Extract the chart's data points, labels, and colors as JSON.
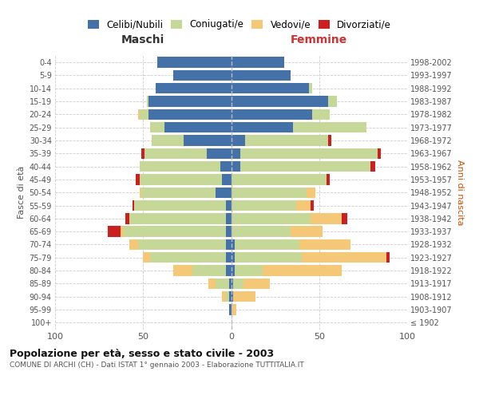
{
  "age_groups": [
    "100+",
    "95-99",
    "90-94",
    "85-89",
    "80-84",
    "75-79",
    "70-74",
    "65-69",
    "60-64",
    "55-59",
    "50-54",
    "45-49",
    "40-44",
    "35-39",
    "30-34",
    "25-29",
    "20-24",
    "15-19",
    "10-14",
    "5-9",
    "0-4"
  ],
  "birth_years": [
    "≤ 1902",
    "1903-1907",
    "1908-1912",
    "1913-1917",
    "1918-1922",
    "1923-1927",
    "1928-1932",
    "1933-1937",
    "1938-1942",
    "1943-1947",
    "1948-1952",
    "1953-1957",
    "1958-1962",
    "1963-1967",
    "1968-1972",
    "1973-1977",
    "1978-1982",
    "1983-1987",
    "1988-1992",
    "1993-1997",
    "1998-2002"
  ],
  "male_celibi": [
    0,
    1,
    1,
    1,
    3,
    3,
    3,
    3,
    3,
    3,
    9,
    5,
    6,
    14,
    27,
    38,
    47,
    47,
    43,
    33,
    42
  ],
  "male_coniugati": [
    0,
    0,
    2,
    8,
    19,
    43,
    50,
    58,
    55,
    52,
    42,
    47,
    46,
    35,
    18,
    8,
    5,
    1,
    0,
    0,
    0
  ],
  "male_vedovi": [
    0,
    0,
    2,
    4,
    11,
    4,
    5,
    2,
    0,
    0,
    1,
    0,
    0,
    0,
    0,
    0,
    1,
    0,
    0,
    0,
    0
  ],
  "male_divorziati": [
    0,
    0,
    0,
    0,
    0,
    0,
    0,
    7,
    2,
    1,
    0,
    2,
    0,
    2,
    0,
    0,
    0,
    0,
    0,
    0,
    0
  ],
  "female_nubili": [
    0,
    0,
    1,
    1,
    2,
    2,
    2,
    0,
    0,
    0,
    0,
    0,
    5,
    5,
    8,
    35,
    46,
    55,
    44,
    34,
    30
  ],
  "female_coniugate": [
    0,
    0,
    0,
    6,
    16,
    38,
    37,
    34,
    45,
    37,
    43,
    54,
    74,
    78,
    47,
    42,
    10,
    5,
    2,
    0,
    0
  ],
  "female_vedove": [
    0,
    3,
    13,
    15,
    45,
    48,
    29,
    18,
    18,
    8,
    5,
    0,
    0,
    0,
    0,
    0,
    0,
    0,
    0,
    0,
    0
  ],
  "female_divorziate": [
    0,
    0,
    0,
    0,
    0,
    2,
    0,
    0,
    3,
    2,
    0,
    2,
    3,
    2,
    2,
    0,
    0,
    0,
    0,
    0,
    0
  ],
  "color_celibi": "#4472a8",
  "color_coniugati": "#c5d898",
  "color_vedovi": "#f5c878",
  "color_divorziati": "#cc2020",
  "xlim": 100,
  "title": "Popolazione per età, sesso e stato civile - 2003",
  "subtitle": "COMUNE DI ARCHI (CH) - Dati ISTAT 1° gennaio 2003 - Elaborazione TUTTITALIA.IT",
  "ylabel_left": "Fasce di età",
  "ylabel_right": "Anni di nascita",
  "header_male": "Maschi",
  "header_female": "Femmine",
  "legend_labels": [
    "Celibi/Nubili",
    "Coniugati/e",
    "Vedovi/e",
    "Divorziati/e"
  ],
  "bg_color": "#ffffff"
}
